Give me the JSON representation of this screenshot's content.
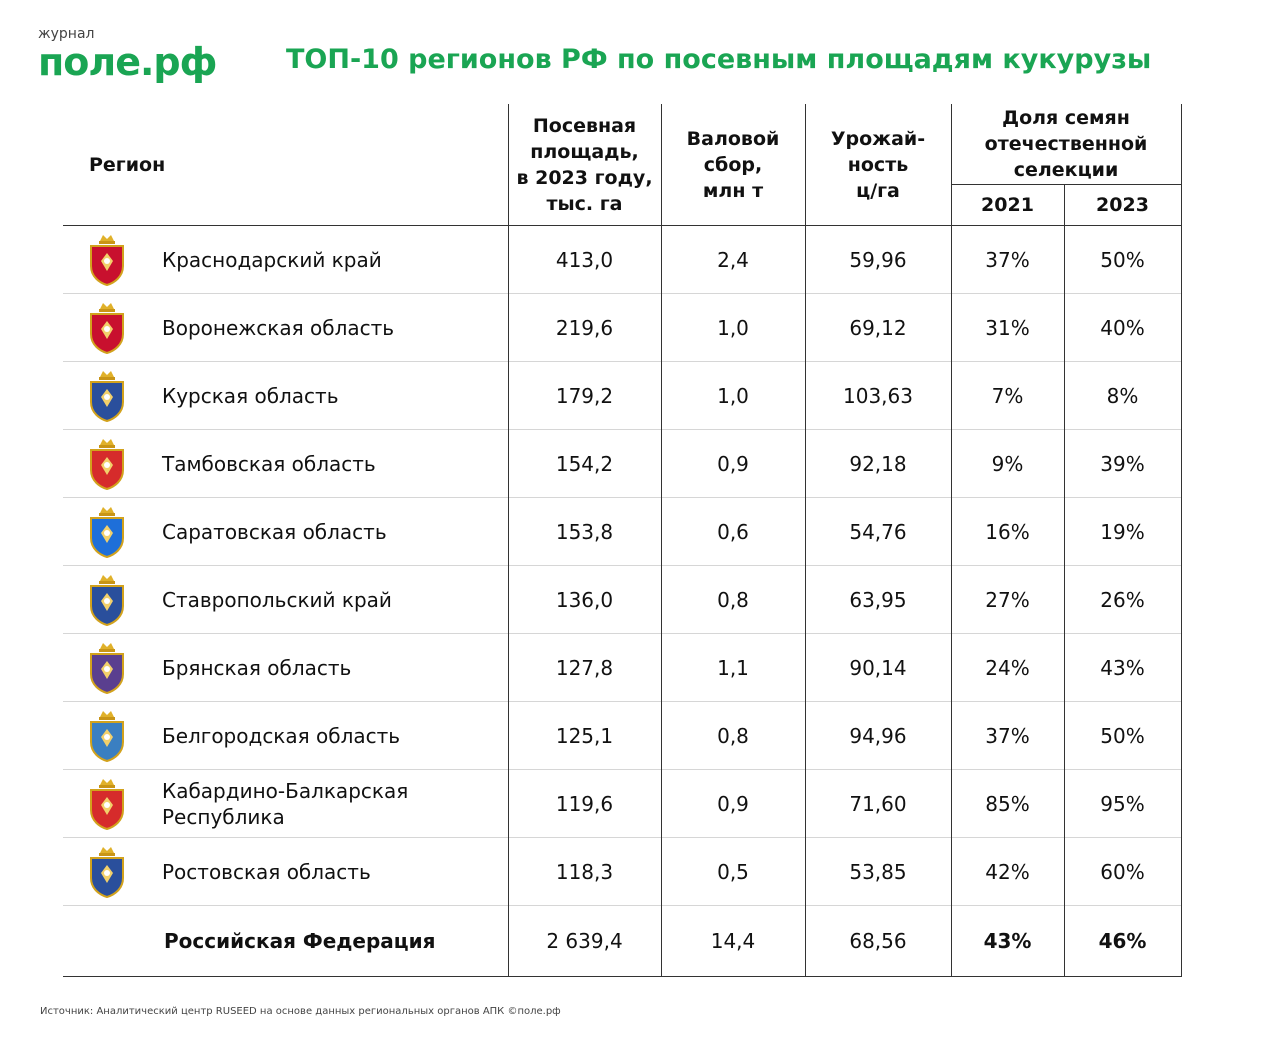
{
  "logo": {
    "small": "журнал",
    "big": "поле.рф"
  },
  "title": "ТОП-10 регионов РФ по посевным площадям кукурузы",
  "headers": {
    "region": "Регион",
    "area": [
      "Посевная",
      "площадь,",
      "в 2023 году,",
      "тыс. га"
    ],
    "harvest": [
      "Валовой",
      "сбор,",
      "млн т"
    ],
    "yield": [
      "Урожай-",
      "ность",
      "ц/га"
    ],
    "seeds": [
      "Доля семян",
      "отечественной",
      "селекции"
    ],
    "year1": "2021",
    "year2": "2023"
  },
  "rows": [
    {
      "region": "Краснодарский край",
      "area": "413,0",
      "harvest": "2,4",
      "yield": "59,96",
      "s2021": "37%",
      "s2023": "50%",
      "crest": "krasnodar-coat-of-arms",
      "crest_color": "#c8102e"
    },
    {
      "region": "Воронежская область",
      "area": "219,6",
      "harvest": "1,0",
      "yield": "69,12",
      "s2021": "31%",
      "s2023": "40%",
      "crest": "voronezh-coat-of-arms",
      "crest_color": "#c8102e"
    },
    {
      "region": "Курская область",
      "area": "179,2",
      "harvest": "1,0",
      "yield": "103,63",
      "s2021": "7%",
      "s2023": "8%",
      "crest": "kursk-coat-of-arms",
      "crest_color": "#2a4f9c"
    },
    {
      "region": "Тамбовская область",
      "area": "154,2",
      "harvest": "0,9",
      "yield": "92,18",
      "s2021": "9%",
      "s2023": "39%",
      "crest": "tambov-coat-of-arms",
      "crest_color": "#d62b2b"
    },
    {
      "region": "Саратовская область",
      "area": "153,8",
      "harvest": "0,6",
      "yield": "54,76",
      "s2021": "16%",
      "s2023": "19%",
      "crest": "saratov-coat-of-arms",
      "crest_color": "#1e6fd9"
    },
    {
      "region": "Ставропольский край",
      "area": "136,0",
      "harvest": "0,8",
      "yield": "63,95",
      "s2021": "27%",
      "s2023": "26%",
      "crest": "stavropol-coat-of-arms",
      "crest_color": "#2a4f9c"
    },
    {
      "region": "Брянская область",
      "area": "127,8",
      "harvest": "1,1",
      "yield": "90,14",
      "s2021": "24%",
      "s2023": "43%",
      "crest": "bryansk-coat-of-arms",
      "crest_color": "#5a3f8f"
    },
    {
      "region": "Белгородская область",
      "area": "125,1",
      "harvest": "0,8",
      "yield": "94,96",
      "s2021": "37%",
      "s2023": "50%",
      "crest": "belgorod-coat-of-arms",
      "crest_color": "#3a7fc1"
    },
    {
      "region": "Кабардино-Балкарская Республика",
      "region_lines": [
        "Кабардино-Балкарская",
        "Республика"
      ],
      "area": "119,6",
      "harvest": "0,9",
      "yield": "71,60",
      "s2021": "85%",
      "s2023": "95%",
      "crest": "kabardino-balkaria-coat-of-arms",
      "crest_color": "#d62b2b"
    },
    {
      "region": "Ростовская область",
      "area": "118,3",
      "harvest": "0,5",
      "yield": "53,85",
      "s2021": "42%",
      "s2023": "60%",
      "crest": "rostov-coat-of-arms",
      "crest_color": "#2a4f9c"
    }
  ],
  "total": {
    "region": "Российская Федерация",
    "area": "2 639,4",
    "harvest": "14,4",
    "yield": "68,56",
    "s2021": "43%",
    "s2023": "46%"
  },
  "source": "Источник: Аналитический центр RUSEED на основе данных региональных органов АПК ©поле.рф",
  "colors": {
    "brand": "#1aa553",
    "rule": "#333333",
    "row_divider": "#d6d6d6"
  }
}
